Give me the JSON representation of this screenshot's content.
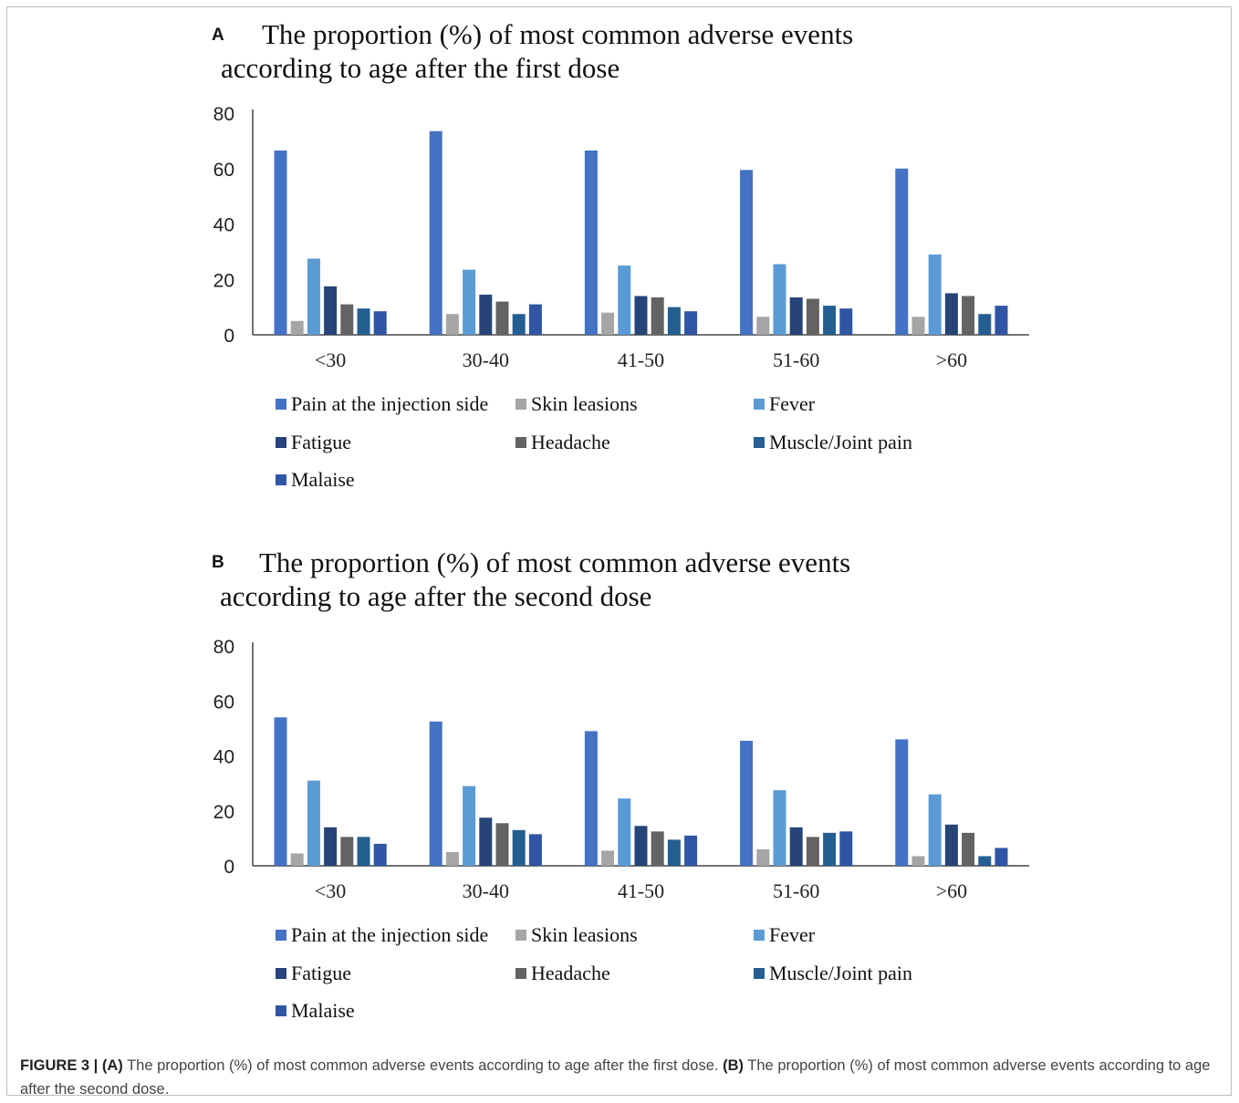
{
  "panels": [
    {
      "letter": "A",
      "title_line1": "The proportion (%) of most common adverse events",
      "title_line2": "according to age after the first dose"
    },
    {
      "letter": "B",
      "title_line1": "The proportion (%) of most common adverse events",
      "title_line2": "according to age after the second dose"
    }
  ],
  "caption": {
    "figure_label": "FIGURE 3 |",
    "a_label": "(A)",
    "a_text": "The proportion (%) of most common adverse events according to age after the first dose.",
    "b_label": "(B)",
    "b_text": "The proportion (%) of most common adverse events according to age after the second dose."
  },
  "legend": [
    {
      "name": "Pain at the injection side",
      "color": "#4472c4"
    },
    {
      "name": "Skin leasions",
      "color": "#a5a5a5"
    },
    {
      "name": "Fever",
      "color": "#5b9bd5"
    },
    {
      "name": "Fatigue",
      "color": "#264478"
    },
    {
      "name": "Headache",
      "color": "#636363"
    },
    {
      "name": "Muscle/Joint pain",
      "color": "#255e91"
    },
    {
      "name": "Malaise",
      "color": "#2f55a4"
    }
  ],
  "chart_data": [
    {
      "type": "bar",
      "title": "The proportion (%) of most common adverse events according to age after the first dose",
      "categories": [
        "<30",
        "30-40",
        "41-50",
        "51-60",
        ">60"
      ],
      "ylim": [
        0,
        80
      ],
      "yticks": [
        "0",
        "20",
        "40",
        "60",
        "80"
      ],
      "grid": false,
      "legend_position": "bottom",
      "series": [
        {
          "name": "Pain at the injection side",
          "values": [
            66.5,
            73.5,
            66.5,
            59.5,
            60
          ]
        },
        {
          "name": "Skin leasions",
          "values": [
            5,
            7.5,
            8,
            6.5,
            6.5
          ]
        },
        {
          "name": "Fever",
          "values": [
            27.5,
            23.5,
            25,
            25.5,
            29
          ]
        },
        {
          "name": "Fatigue",
          "values": [
            17.5,
            14.5,
            14,
            13.5,
            15
          ]
        },
        {
          "name": "Headache",
          "values": [
            11,
            12,
            13.5,
            13,
            14
          ]
        },
        {
          "name": "Muscle/Joint pain",
          "values": [
            9.5,
            7.5,
            10,
            10.5,
            7.5
          ]
        },
        {
          "name": "Malaise",
          "values": [
            8.5,
            11,
            8.5,
            9.5,
            10.5
          ]
        }
      ]
    },
    {
      "type": "bar",
      "title": "The proportion (%) of most common adverse events according to age after the second dose",
      "categories": [
        "<30",
        "30-40",
        "41-50",
        "51-60",
        ">60"
      ],
      "ylim": [
        0,
        80
      ],
      "yticks": [
        "0",
        "20",
        "40",
        "60",
        "80"
      ],
      "grid": false,
      "legend_position": "bottom",
      "series": [
        {
          "name": "Pain at the injection side",
          "values": [
            54,
            52.5,
            49,
            45.5,
            46
          ]
        },
        {
          "name": "Skin leasions",
          "values": [
            4.5,
            5,
            5.5,
            6,
            3.5
          ]
        },
        {
          "name": "Fever",
          "values": [
            31,
            29,
            24.5,
            27.5,
            26
          ]
        },
        {
          "name": "Fatigue",
          "values": [
            14,
            17.5,
            14.5,
            14,
            15
          ]
        },
        {
          "name": "Headache",
          "values": [
            10.5,
            15.5,
            12.5,
            10.5,
            12
          ]
        },
        {
          "name": "Muscle/Joint pain",
          "values": [
            10.5,
            13,
            9.5,
            12,
            3.5
          ]
        },
        {
          "name": "Malaise",
          "values": [
            8,
            11.5,
            11,
            12.5,
            6.5
          ]
        }
      ]
    }
  ]
}
